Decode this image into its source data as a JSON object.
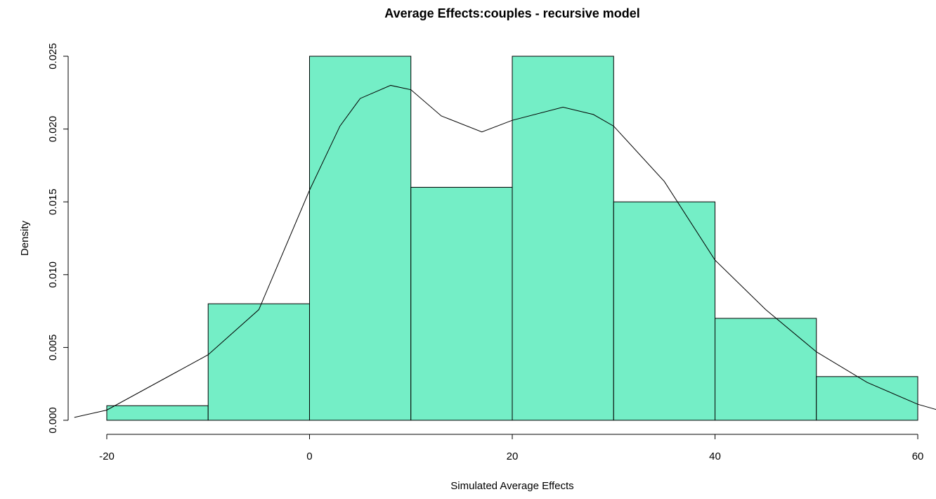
{
  "chart_data": {
    "type": "histogram",
    "title": "Average Effects:couples - recursive model",
    "xlabel": "Simulated Average Effects",
    "ylabel": "Density",
    "bins": [
      -20,
      -10,
      0,
      10,
      20,
      30,
      40,
      50,
      60
    ],
    "values": [
      0.001,
      0.008,
      0.025,
      0.016,
      0.025,
      0.015,
      0.007,
      0.003
    ],
    "color": "#74eec6",
    "edgecolor": "#000000",
    "density": {
      "color": "#000000",
      "x": [
        -23.2,
        -20,
        -10,
        -5,
        0,
        3,
        5,
        8,
        10,
        13,
        17,
        20,
        25,
        28,
        30,
        35,
        40,
        45,
        50,
        55,
        60,
        62
      ],
      "values": [
        0.0002,
        0.0007,
        0.0045,
        0.0076,
        0.0158,
        0.0202,
        0.0221,
        0.023,
        0.0227,
        0.0209,
        0.0198,
        0.0206,
        0.0215,
        0.021,
        0.0202,
        0.0164,
        0.011,
        0.0076,
        0.0047,
        0.0026,
        0.0011,
        0.0007
      ]
    },
    "xlim": [
      -23.2,
      63.2
    ],
    "ylim": [
      -0.001,
      0.026
    ],
    "xticks": [
      -20,
      0,
      20,
      40,
      60
    ],
    "yticks": [
      {
        "value": 0,
        "label": "0.000"
      },
      0.005,
      {
        "value": 0.01,
        "label": "0.010"
      },
      0.015,
      {
        "value": 0.02,
        "label": "0.020"
      },
      0.025
    ],
    "grid": false
  }
}
